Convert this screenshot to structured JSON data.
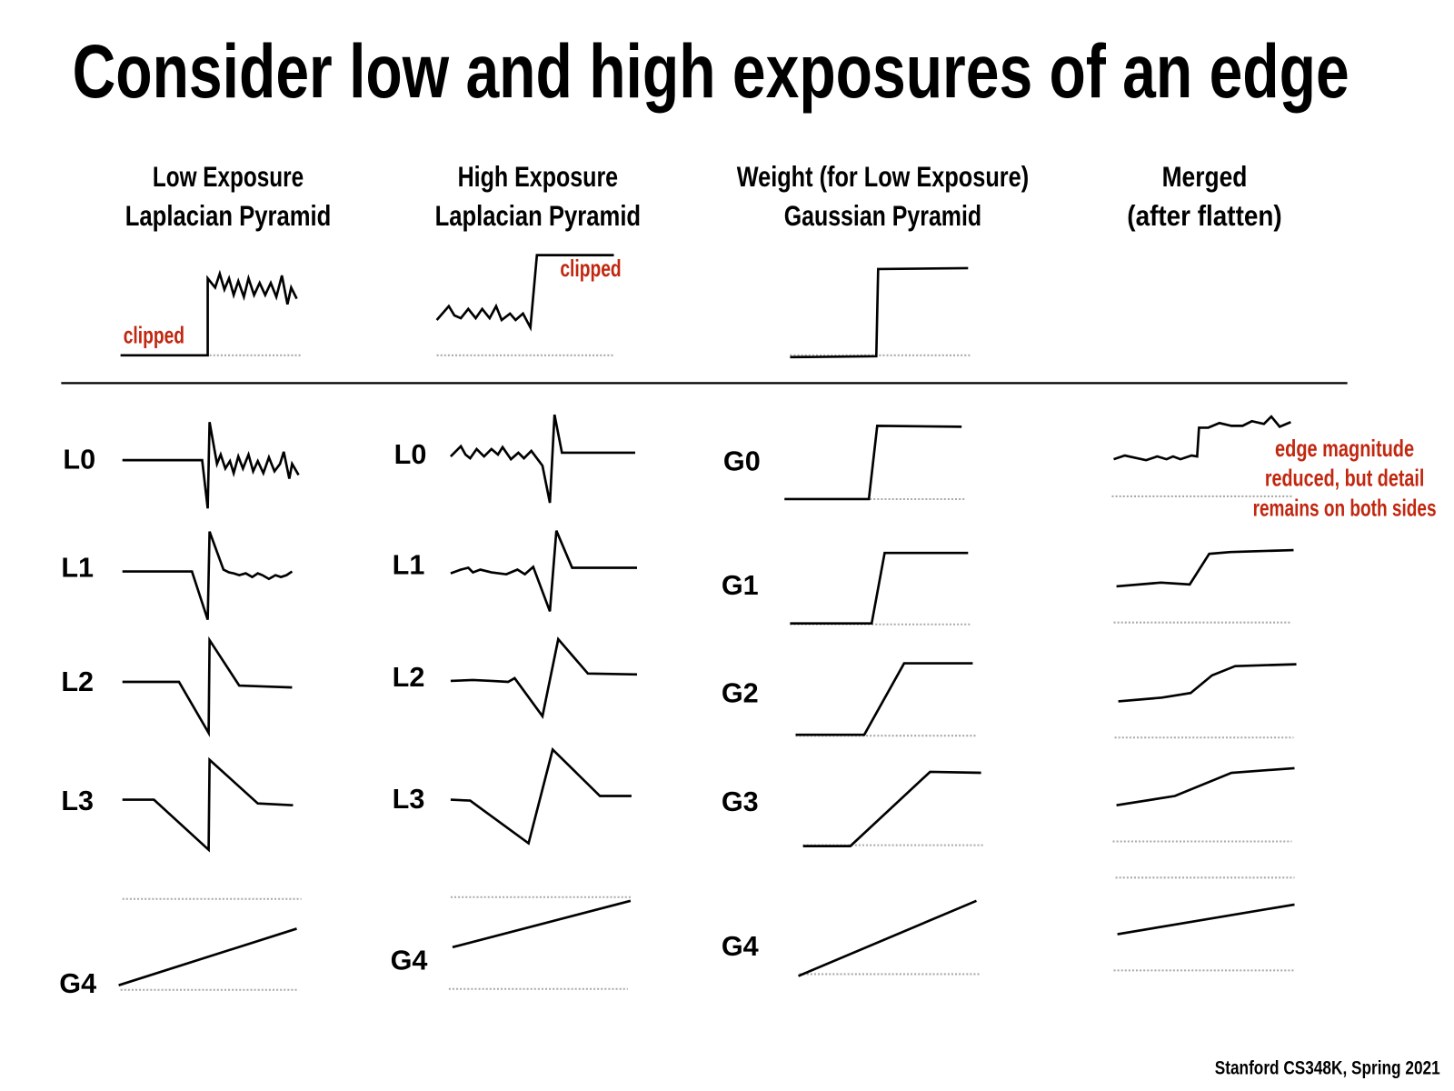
{
  "title": "Consider low and high exposures of an edge",
  "columns": [
    {
      "line1": "Low Exposure",
      "line2": "Laplacian Pyramid"
    },
    {
      "line1": "High Exposure",
      "line2": "Laplacian Pyramid"
    },
    {
      "line1": "Weight (for Low Exposure)",
      "line2": "Gaussian Pyramid"
    },
    {
      "line1": "Merged",
      "line2": "(after flatten)"
    }
  ],
  "annotations": {
    "low_clipped": "clipped",
    "high_clipped": "clipped",
    "merged_note": [
      "edge magnitude",
      "reduced, but detail",
      "remains on both sides"
    ]
  },
  "row_labels": {
    "low": [
      "L0",
      "L1",
      "L2",
      "L3",
      "G4"
    ],
    "high": [
      "L0",
      "L1",
      "L2",
      "L3",
      "G4"
    ],
    "weight": [
      "G0",
      "G1",
      "G2",
      "G3",
      "G4"
    ]
  },
  "footer": "Stanford CS348K, Spring 2021",
  "colors": {
    "annotation": "#c1270f",
    "signal": "#000000",
    "baseline": "#aaaaaa"
  }
}
